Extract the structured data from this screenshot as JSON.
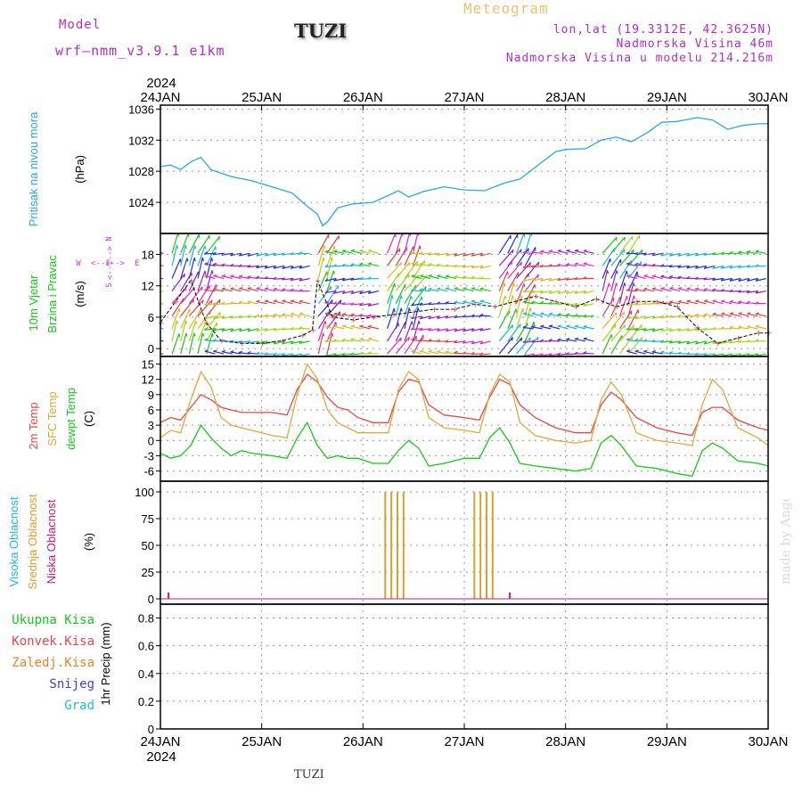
{
  "header": {
    "model_label": "Model",
    "model_value": "wrf–nmm_v3.9.1  e1km",
    "station_title": "TUZI",
    "app_title": "Meteogram",
    "coords": "lon,lat (19.3312E, 42.3625N)",
    "elevation": "Nadmorska Visina 46m",
    "model_elevation": "Nadmorska Visina u modelu 214.216m"
  },
  "footer": {
    "station": "TUZI",
    "credit": "made by Angel"
  },
  "colors": {
    "pressure": "#2ea8e0",
    "temp_2m": "#e84848",
    "temp_sfc": "#e0a840",
    "dewpoint": "#18c818",
    "cloud_high": "#20b8e0",
    "cloud_mid": "#d8a030",
    "cloud_low": "#d01878",
    "wind_label": "#18c818",
    "compass": "#c040d0"
  },
  "chart_data": {
    "type": "line",
    "x_axis": {
      "year": "2024",
      "ticks": [
        "24JAN",
        "25JAN",
        "26JAN",
        "27JAN",
        "28JAN",
        "29JAN",
        "30JAN"
      ],
      "range_days": [
        0,
        6
      ]
    },
    "panels": [
      {
        "id": "pressure",
        "ylabel": "Pritisak na nivou mora",
        "unit": "(hPa)",
        "yticks": [
          1024,
          1028,
          1032,
          1036
        ],
        "ylim": [
          1020,
          1036.5
        ],
        "series": [
          {
            "name": "Pritisak na nivou mora",
            "x": [
              0,
              0.1,
              0.2,
              0.3,
              0.4,
              0.5,
              0.7,
              0.9,
              1.1,
              1.3,
              1.45,
              1.55,
              1.6,
              1.65,
              1.75,
              1.9,
              2.1,
              2.2,
              2.35,
              2.45,
              2.6,
              2.8,
              3.0,
              3.2,
              3.4,
              3.55,
              3.7,
              3.9,
              4.0,
              4.2,
              4.35,
              4.5,
              4.65,
              4.8,
              4.95,
              5.1,
              5.3,
              5.45,
              5.6,
              5.75,
              5.9,
              6.0
            ],
            "y": [
              1028.6,
              1028.8,
              1028.2,
              1029.2,
              1029.8,
              1028.2,
              1027.3,
              1026.8,
              1026.0,
              1025.2,
              1023.5,
              1022.5,
              1021.0,
              1021.5,
              1023.3,
              1023.8,
              1024.0,
              1024.6,
              1025.5,
              1024.7,
              1025.4,
              1026.0,
              1025.6,
              1025.5,
              1026.5,
              1027.0,
              1028.5,
              1030.5,
              1030.8,
              1030.9,
              1032.0,
              1032.4,
              1031.8,
              1032.9,
              1034.3,
              1034.4,
              1034.9,
              1034.6,
              1033.4,
              1033.9,
              1034.1,
              1034.1
            ]
          }
        ]
      },
      {
        "id": "wind",
        "ylabel": "10m Vjetar",
        "ylabel2": "Brzina i Pravac",
        "unit": "(m/s)",
        "compass": {
          "n": "N",
          "s": "S",
          "e": "E",
          "w": "W",
          "arrow": "<--I-->"
        },
        "yticks": [
          0,
          6,
          12,
          18
        ],
        "ylim": [
          -1.5,
          22
        ],
        "series": [
          {
            "name": "10m Vjetar",
            "x": [
              0,
              0.15,
              0.3,
              0.45,
              0.6,
              0.8,
              1.0,
              1.2,
              1.4,
              1.5,
              1.55,
              1.7,
              1.9,
              2.1,
              2.3,
              2.5,
              2.7,
              2.9,
              3.1,
              3.3,
              3.5,
              3.7,
              3.9,
              4.1,
              4.3,
              4.5,
              4.7,
              4.9,
              5.1,
              5.3,
              5.5,
              5.7,
              5.9,
              6.0
            ],
            "y": [
              5.0,
              9.0,
              13.0,
              5.0,
              1.5,
              1.0,
              1.0,
              1.5,
              2.5,
              3.5,
              13.0,
              6.0,
              5.5,
              6.0,
              6.5,
              7.0,
              7.5,
              7.5,
              8.5,
              8.0,
              9.0,
              10.0,
              9.0,
              8.0,
              9.5,
              8.0,
              9.0,
              9.0,
              8.0,
              4.0,
              1.0,
              2.0,
              3.0,
              3.0
            ]
          }
        ]
      },
      {
        "id": "temperature",
        "ylabel": "2m Temp",
        "ylabel2": "SFC Temp",
        "ylabel3": "dewpt Temp",
        "unit": "(C)",
        "yticks": [
          -6,
          -3,
          0,
          3,
          6,
          9,
          12,
          15
        ],
        "ylim": [
          -8,
          16.5
        ],
        "series": [
          {
            "name": "2m Temp",
            "x": [
              0,
              0.1,
              0.2,
              0.3,
              0.4,
              0.5,
              0.6,
              0.7,
              0.8,
              0.9,
              1.1,
              1.25,
              1.35,
              1.45,
              1.55,
              1.65,
              1.75,
              1.85,
              1.95,
              2.1,
              2.25,
              2.35,
              2.45,
              2.55,
              2.65,
              2.8,
              3.0,
              3.15,
              3.25,
              3.35,
              3.45,
              3.55,
              3.7,
              3.9,
              4.1,
              4.25,
              4.35,
              4.45,
              4.55,
              4.7,
              4.9,
              5.1,
              5.25,
              5.35,
              5.45,
              5.55,
              5.7,
              5.9,
              6.0
            ],
            "y": [
              3.5,
              4.5,
              4.0,
              6.5,
              9.0,
              8.0,
              6.5,
              6.0,
              5.5,
              5.5,
              5.5,
              5.0,
              10.0,
              13.0,
              11.5,
              8.5,
              6.5,
              6.0,
              4.5,
              3.5,
              3.5,
              9.5,
              12.0,
              11.5,
              7.0,
              5.0,
              4.5,
              4.0,
              8.5,
              12.0,
              11.0,
              7.0,
              4.5,
              2.5,
              1.5,
              1.5,
              7.0,
              9.5,
              8.0,
              4.5,
              2.5,
              1.5,
              1.0,
              5.5,
              6.5,
              6.5,
              4.0,
              2.5,
              2.0
            ]
          },
          {
            "name": "SFC Temp",
            "x": [
              0,
              0.1,
              0.2,
              0.3,
              0.4,
              0.5,
              0.6,
              0.7,
              0.8,
              0.9,
              1.1,
              1.25,
              1.35,
              1.45,
              1.55,
              1.65,
              1.75,
              1.85,
              1.95,
              2.1,
              2.25,
              2.35,
              2.45,
              2.55,
              2.65,
              2.8,
              3.0,
              3.15,
              3.25,
              3.35,
              3.45,
              3.55,
              3.7,
              3.9,
              4.1,
              4.25,
              4.35,
              4.45,
              4.55,
              4.7,
              4.9,
              5.1,
              5.25,
              5.35,
              5.45,
              5.55,
              5.7,
              5.9,
              6.0
            ],
            "y": [
              0.5,
              2.0,
              1.5,
              8.0,
              13.5,
              10.5,
              4.5,
              3.0,
              2.5,
              2.0,
              1.0,
              0.5,
              9.0,
              15.0,
              12.0,
              6.0,
              3.5,
              2.5,
              1.5,
              1.5,
              1.5,
              10.0,
              13.5,
              12.0,
              4.5,
              2.5,
              2.0,
              1.5,
              9.0,
              13.0,
              11.5,
              3.5,
              1.0,
              0.0,
              -0.5,
              0.0,
              8.0,
              11.5,
              9.0,
              1.5,
              0.0,
              -0.5,
              -1.0,
              7.0,
              12.0,
              10.0,
              2.5,
              0.5,
              -1.0
            ]
          },
          {
            "name": "dewpt Temp",
            "x": [
              0,
              0.1,
              0.2,
              0.3,
              0.4,
              0.5,
              0.6,
              0.7,
              0.8,
              0.9,
              1.1,
              1.25,
              1.35,
              1.45,
              1.55,
              1.65,
              1.75,
              1.85,
              1.95,
              2.1,
              2.25,
              2.35,
              2.45,
              2.55,
              2.65,
              2.8,
              3.0,
              3.15,
              3.25,
              3.35,
              3.45,
              3.55,
              3.7,
              3.9,
              4.1,
              4.25,
              4.35,
              4.45,
              4.55,
              4.7,
              4.9,
              5.1,
              5.25,
              5.35,
              5.45,
              5.55,
              5.7,
              5.9,
              6.0
            ],
            "y": [
              -2.5,
              -3.5,
              -3.0,
              -1.0,
              3.0,
              0.5,
              -1.5,
              -3.0,
              -2.0,
              -2.5,
              -3.0,
              -3.5,
              0.5,
              3.5,
              -1.0,
              -3.5,
              -3.0,
              -3.5,
              -3.5,
              -4.5,
              -4.5,
              -2.0,
              0.0,
              -1.5,
              -5.0,
              -4.5,
              -3.5,
              -3.5,
              0.5,
              2.5,
              -0.5,
              -4.5,
              -5.0,
              -5.5,
              -6.0,
              -5.5,
              -0.5,
              1.0,
              -1.0,
              -5.0,
              -5.5,
              -6.5,
              -7.0,
              -2.0,
              -0.5,
              -1.5,
              -4.0,
              -4.5,
              -5.0
            ]
          }
        ]
      },
      {
        "id": "cloud",
        "ylabel": "Visoka Oblacnost",
        "ylabel2": "Srednja Oblacnost",
        "ylabel3": "Niska Oblacnost",
        "unit": "(%)",
        "yticks": [
          0,
          25,
          50,
          75,
          100
        ],
        "ylim": [
          -5,
          110
        ],
        "series": [
          {
            "name": "Srednja Oblacnost",
            "type": "bar",
            "x": [
              2.22,
              2.28,
              2.34,
              2.4,
              3.1,
              3.16,
              3.22,
              3.28
            ],
            "values": [
              100,
              100,
              100,
              100,
              100,
              100,
              100,
              100
            ]
          },
          {
            "name": "Niska Oblacnost",
            "type": "bar",
            "x": [
              0.08,
              3.45
            ],
            "values": [
              6,
              6
            ]
          }
        ]
      },
      {
        "id": "precip",
        "ylabel": "1hr Precip",
        "unit": "(mm)",
        "legend": [
          "Ukupna Kisa",
          "Konvek.Kisa",
          "Zaledj.Kisa",
          "Snijeg",
          "Grad"
        ],
        "yticks": [
          0,
          0.2,
          0.4,
          0.6,
          0.8
        ],
        "ytick_labels": [
          "0",
          "0.2",
          "0.4",
          "0.6",
          "0.8"
        ],
        "ylim": [
          0,
          0.9
        ],
        "series": []
      }
    ]
  }
}
